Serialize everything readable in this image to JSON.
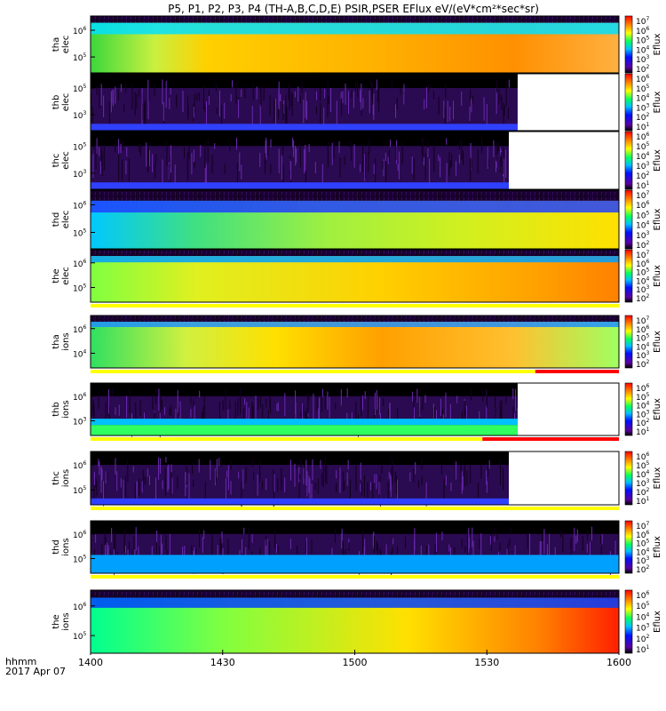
{
  "title": "P5, P1, P2, P3, P4 (TH-A,B,C,D,E) PSIR,PSER EFlux eV/(eV*cm²*sec*sr)",
  "chart_data": {
    "type": "heatmap",
    "title": "P5, P1, P2, P3, P4 (TH-A,B,C,D,E) PSIR,PSER EFlux eV/(eV*cm²*sec*sr)",
    "x_axis": {
      "label_line1": "hhmm",
      "label_line2": "2017 Apr 07",
      "range_minutes": [
        0,
        120
      ],
      "ticks": [
        {
          "label": "1400",
          "minutes": 0
        },
        {
          "label": "1430",
          "minutes": 30
        },
        {
          "label": "1500",
          "minutes": 60
        },
        {
          "label": "1530",
          "minutes": 90
        },
        {
          "label": "1600",
          "minutes": 120
        }
      ]
    },
    "colorbar_label": "Eflux",
    "y_scale": "log",
    "panels": [
      {
        "id": "tha-elec",
        "ylabel": [
          "tha",
          "elec"
        ],
        "yticks": [
          "10",
          "10"
        ],
        "yexp": [
          "6",
          "5"
        ],
        "cb_exp": [
          "7",
          "6",
          "5",
          "4",
          "3",
          "2"
        ],
        "style": "hot",
        "data_end_minutes": 120,
        "flag": null
      },
      {
        "id": "thb-elec",
        "ylabel": [
          "thb",
          "elec"
        ],
        "yticks": [
          "10",
          "10"
        ],
        "yexp": [
          "5",
          "3"
        ],
        "cb_exp": [
          "6",
          "5",
          "4",
          "3",
          "2",
          "1"
        ],
        "style": "sparse",
        "data_end_minutes": 97,
        "flag": null
      },
      {
        "id": "thc-elec",
        "ylabel": [
          "thc",
          "elec"
        ],
        "yticks": [
          "10",
          "10"
        ],
        "yexp": [
          "5",
          "3"
        ],
        "cb_exp": [
          "6",
          "5",
          "4",
          "3",
          "2",
          "1"
        ],
        "style": "sparse",
        "data_end_minutes": 95,
        "flag": null
      },
      {
        "id": "thd-elec",
        "ylabel": [
          "thd",
          "elec"
        ],
        "yticks": [
          "10",
          "10"
        ],
        "yexp": [
          "6",
          "5"
        ],
        "cb_exp": [
          "7",
          "6",
          "5",
          "4",
          "3",
          "2"
        ],
        "style": "warm",
        "data_end_minutes": 120,
        "flag": null
      },
      {
        "id": "the-elec",
        "ylabel": [
          "the",
          "elec"
        ],
        "yticks": [
          "10",
          "10"
        ],
        "yexp": [
          "6",
          "5"
        ],
        "cb_exp": [
          "7",
          "6",
          "5",
          "4",
          "3",
          "2"
        ],
        "style": "warmrise",
        "data_end_minutes": 120,
        "flag": {
          "yellow_to_minutes": 120,
          "red_from_minutes": null
        }
      },
      {
        "id": "tha-ions",
        "ylabel": [
          "tha",
          "ions"
        ],
        "yticks": [
          "10",
          "10"
        ],
        "yexp": [
          "6",
          "4"
        ],
        "cb_exp": [
          "7",
          "6",
          "5",
          "4",
          "3",
          "2"
        ],
        "style": "hotions",
        "data_end_minutes": 120,
        "flag": {
          "yellow_to_minutes": 101,
          "red_from_minutes": 101
        }
      },
      {
        "id": "thb-ions",
        "ylabel": [
          "thb",
          "ions"
        ],
        "yticks": [
          "10",
          "10"
        ],
        "yexp": [
          "6",
          "3"
        ],
        "cb_exp": [
          "6",
          "5",
          "4",
          "3",
          "2",
          "1"
        ],
        "style": "sparseband",
        "data_end_minutes": 97,
        "flag": {
          "yellow_to_minutes": 89,
          "red_from_minutes": 89
        }
      },
      {
        "id": "thc-ions",
        "ylabel": [
          "thc",
          "ions"
        ],
        "yticks": [
          "10",
          "10"
        ],
        "yexp": [
          "6",
          "5"
        ],
        "cb_exp": [
          "6",
          "5",
          "4",
          "3",
          "2",
          "1"
        ],
        "style": "sparse",
        "data_end_minutes": 95,
        "flag": {
          "yellow_to_minutes": 120,
          "red_from_minutes": null
        }
      },
      {
        "id": "thd-ions",
        "ylabel": [
          "thd",
          "ions"
        ],
        "yticks": [
          "10",
          "10"
        ],
        "yexp": [
          "6",
          "5"
        ],
        "cb_exp": [
          "7",
          "6",
          "5",
          "4",
          "3",
          "2"
        ],
        "style": "sparseblue",
        "data_end_minutes": 120,
        "flag": {
          "yellow_to_minutes": 120,
          "red_from_minutes": null
        }
      },
      {
        "id": "the-ions",
        "ylabel": [
          "the",
          "ions"
        ],
        "yticks": [
          "10",
          "10"
        ],
        "yexp": [
          "6",
          "5"
        ],
        "cb_exp": [
          "6",
          "5",
          "4",
          "3",
          "2",
          "1"
        ],
        "style": "warmrise2",
        "data_end_minutes": 120,
        "flag": null
      }
    ]
  }
}
